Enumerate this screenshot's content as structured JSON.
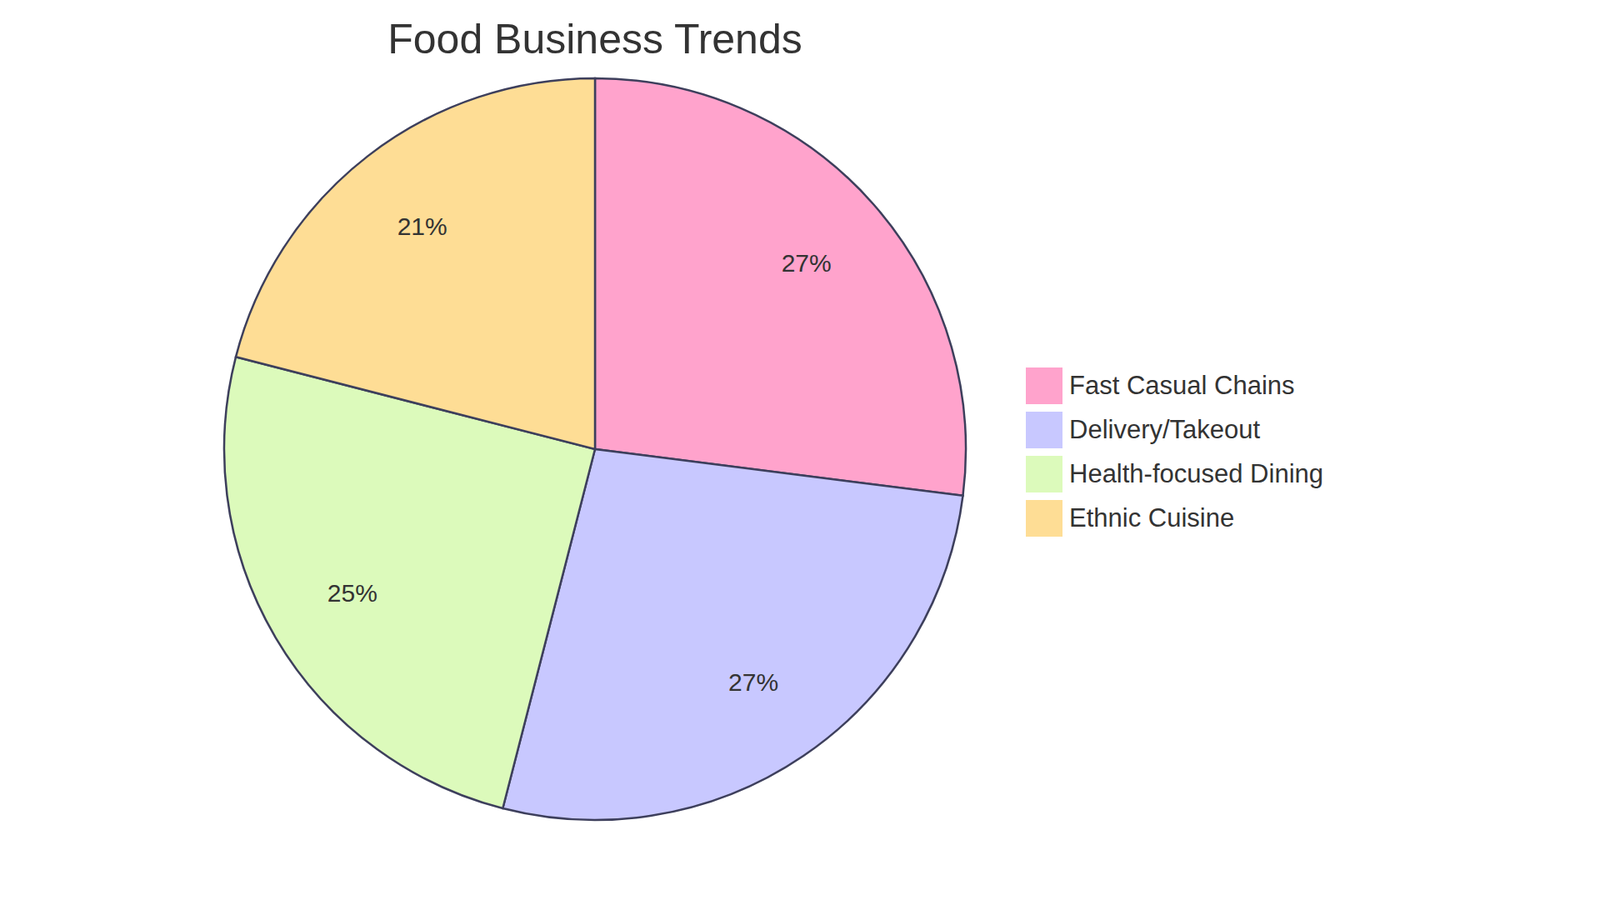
{
  "chart_data": {
    "type": "pie",
    "title": "Food Business Trends",
    "categories": [
      "Fast Casual Chains",
      "Delivery/Takeout",
      "Health-focused Dining",
      "Ethnic Cuisine"
    ],
    "values": [
      27,
      27,
      25,
      21
    ],
    "value_labels": [
      "27%",
      "27%",
      "25%",
      "21%"
    ],
    "colors": [
      "#ffa3cc",
      "#c8c8ff",
      "#dcfabb",
      "#fedd95"
    ],
    "data_labels": true,
    "legend": "right"
  }
}
